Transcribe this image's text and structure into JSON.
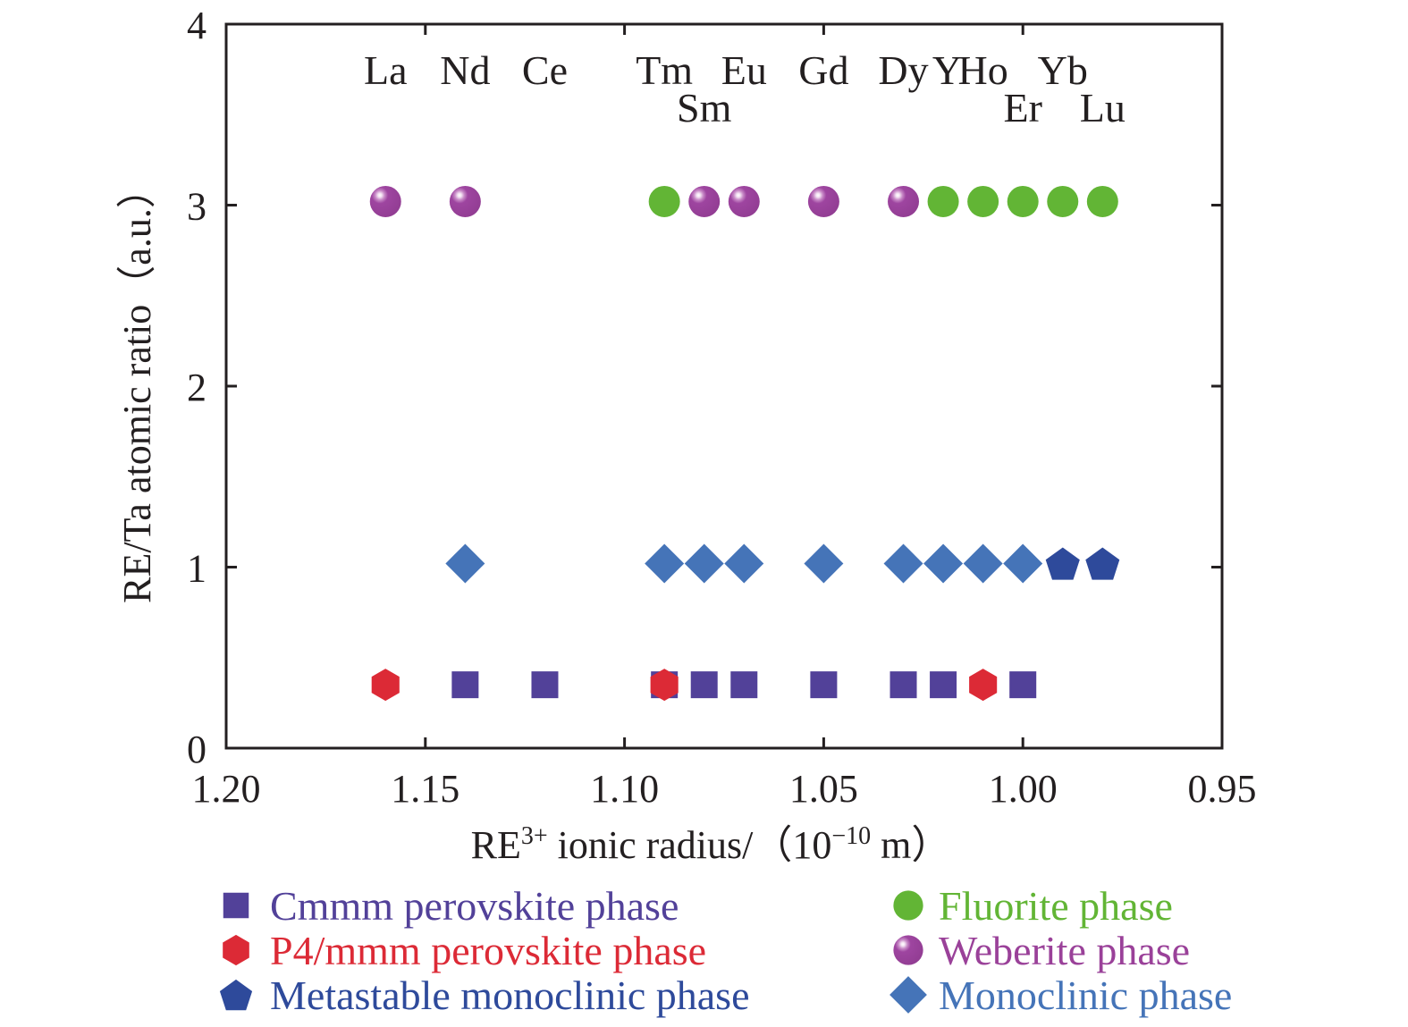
{
  "chart_data": {
    "type": "scatter",
    "title": "",
    "xlabel": {
      "prefix": "RE",
      "superscript": "3+",
      "middle": " ionic radius/（10",
      "exponent": "−10",
      "suffix": " m）"
    },
    "ylabel": "RE/Ta atomic ratio（a.u.）",
    "xlim": [
      1.2,
      0.95
    ],
    "ylim": [
      0,
      4
    ],
    "x_reversed": true,
    "xticks": [
      1.2,
      1.15,
      1.1,
      1.05,
      1.0,
      0.95
    ],
    "xtick_labels": [
      "1.20",
      "1.15",
      "1.10",
      "1.05",
      "1.00",
      "0.95"
    ],
    "yticks": [
      0,
      1,
      2,
      3,
      4
    ],
    "ytick_labels": [
      "0",
      "1",
      "2",
      "3",
      "4"
    ],
    "grid": false,
    "legend_position": "below",
    "element_labels": [
      {
        "label": "La",
        "x": 1.16,
        "row": 1
      },
      {
        "label": "Nd",
        "x": 1.14,
        "row": 1
      },
      {
        "label": "Ce",
        "x": 1.12,
        "row": 1
      },
      {
        "label": "Tm",
        "x": 1.09,
        "row": 1
      },
      {
        "label": "Sm",
        "x": 1.08,
        "row": 2
      },
      {
        "label": "Eu",
        "x": 1.07,
        "row": 1
      },
      {
        "label": "Gd",
        "x": 1.05,
        "row": 1
      },
      {
        "label": "Dy",
        "x": 1.03,
        "row": 1
      },
      {
        "label": "Y",
        "x": 1.019,
        "row": 1
      },
      {
        "label": "Ho",
        "x": 1.01,
        "row": 1
      },
      {
        "label": "Er",
        "x": 1.0,
        "row": 2
      },
      {
        "label": "Yb",
        "x": 0.99,
        "row": 1
      },
      {
        "label": "Lu",
        "x": 0.98,
        "row": 2
      }
    ],
    "series": [
      {
        "name": "Cmmm perovskite phase",
        "marker": "square",
        "color": "#524199",
        "points": [
          {
            "x": 1.14,
            "y": 0.35
          },
          {
            "x": 1.12,
            "y": 0.35
          },
          {
            "x": 1.09,
            "y": 0.35
          },
          {
            "x": 1.08,
            "y": 0.35
          },
          {
            "x": 1.07,
            "y": 0.35
          },
          {
            "x": 1.05,
            "y": 0.35
          },
          {
            "x": 1.03,
            "y": 0.35
          },
          {
            "x": 1.02,
            "y": 0.35
          },
          {
            "x": 1.0,
            "y": 0.35
          }
        ]
      },
      {
        "name": "P4/mmm perovskite phase",
        "marker": "hexagon",
        "color": "#dc2a36",
        "points": [
          {
            "x": 1.16,
            "y": 0.35
          },
          {
            "x": 1.09,
            "y": 0.35
          },
          {
            "x": 1.01,
            "y": 0.35
          }
        ]
      },
      {
        "name": "Metastable monoclinic phase",
        "marker": "pentagon",
        "color": "#2e4a9b",
        "points": [
          {
            "x": 0.99,
            "y": 1.02
          },
          {
            "x": 0.98,
            "y": 1.02
          }
        ]
      },
      {
        "name": "Fluorite phase",
        "marker": "circle",
        "color": "#62b535",
        "points": [
          {
            "x": 1.09,
            "y": 3.02
          },
          {
            "x": 1.02,
            "y": 3.02
          },
          {
            "x": 1.01,
            "y": 3.02
          },
          {
            "x": 1.0,
            "y": 3.02
          },
          {
            "x": 0.99,
            "y": 3.02
          },
          {
            "x": 0.98,
            "y": 3.02
          }
        ]
      },
      {
        "name": "Weberite phase",
        "marker": "sphere",
        "color": "#9a4199",
        "points": [
          {
            "x": 1.16,
            "y": 3.02
          },
          {
            "x": 1.14,
            "y": 3.02
          },
          {
            "x": 1.08,
            "y": 3.02
          },
          {
            "x": 1.07,
            "y": 3.02
          },
          {
            "x": 1.05,
            "y": 3.02
          },
          {
            "x": 1.03,
            "y": 3.02
          }
        ]
      },
      {
        "name": "Monoclinic phase",
        "marker": "diamond",
        "color": "#4574b8",
        "points": [
          {
            "x": 1.14,
            "y": 1.02
          },
          {
            "x": 1.09,
            "y": 1.02
          },
          {
            "x": 1.08,
            "y": 1.02
          },
          {
            "x": 1.07,
            "y": 1.02
          },
          {
            "x": 1.05,
            "y": 1.02
          },
          {
            "x": 1.03,
            "y": 1.02
          },
          {
            "x": 1.02,
            "y": 1.02
          },
          {
            "x": 1.01,
            "y": 1.02
          },
          {
            "x": 1.0,
            "y": 1.02
          }
        ]
      }
    ],
    "legend_order": [
      0,
      1,
      2,
      3,
      4,
      5
    ]
  }
}
